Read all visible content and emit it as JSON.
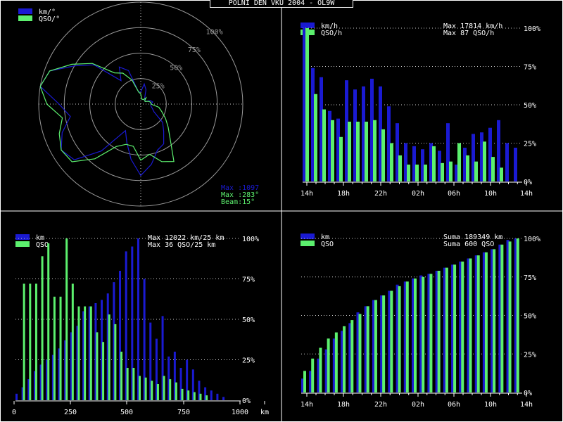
{
  "title": "POLNI DEN VKU 2004 - OL9W",
  "colors": {
    "blue": "#1a1ad2",
    "green": "#5cf06e",
    "grid": "#9a9a9a",
    "frame": "#ffffff",
    "bg": "#000000"
  },
  "chart_data": [
    {
      "id": "polar",
      "type": "polar",
      "legend": [
        {
          "label": "km/°",
          "color": "#1a1ad2"
        },
        {
          "label": "QSO/°",
          "color": "#5cf06e"
        }
      ],
      "ring_labels": [
        "25%",
        "50%",
        "75%",
        "100%"
      ],
      "stats": [
        "Max :1097",
        "Max :283°",
        "Beam:15°"
      ],
      "angles_deg": [
        0,
        10,
        20,
        30,
        40,
        50,
        60,
        70,
        80,
        90,
        100,
        110,
        120,
        130,
        140,
        150,
        160,
        170,
        180,
        190,
        200,
        210,
        220,
        230,
        240,
        250,
        260,
        270,
        280,
        290,
        300,
        310,
        320,
        330,
        340,
        350
      ],
      "km_percent": [
        12,
        20,
        15,
        8,
        6,
        5,
        5,
        10,
        12,
        10,
        10,
        12,
        15,
        28,
        35,
        45,
        48,
        60,
        70,
        55,
        40,
        30,
        60,
        85,
        90,
        82,
        70,
        80,
        100,
        95,
        75,
        60,
        30,
        42,
        35,
        12
      ],
      "qso_percent": [
        10,
        5,
        5,
        5,
        8,
        5,
        5,
        8,
        10,
        10,
        18,
        22,
        28,
        35,
        45,
        65,
        60,
        50,
        55,
        42,
        42,
        48,
        70,
        88,
        90,
        85,
        78,
        92,
        100,
        95,
        78,
        62,
        40,
        35,
        25,
        12
      ]
    },
    {
      "id": "hourly",
      "type": "bar",
      "legend": [
        {
          "label": "km/h",
          "color": "#1a1ad2"
        },
        {
          "label": "QSO/h",
          "color": "#5cf06e"
        }
      ],
      "stats": [
        "Max 17814 km/h",
        "Max   87 QSO/h"
      ],
      "x_tick_labels": [
        "14h",
        "18h",
        "22h",
        "02h",
        "06h",
        "10h",
        "14h"
      ],
      "y_tick_labels": [
        "0%",
        "25%",
        "50%",
        "75%",
        "100%"
      ],
      "ylim": [
        0,
        100
      ],
      "series": [
        {
          "name": "km/h",
          "values": [
            100,
            74,
            68,
            46,
            41,
            66,
            60,
            62,
            67,
            62,
            49,
            38,
            25,
            23,
            21,
            25,
            20,
            38,
            11,
            22,
            31,
            32,
            35,
            40,
            25,
            22
          ]
        },
        {
          "name": "QSO/h",
          "values": [
            100,
            57,
            47,
            40,
            29,
            39,
            39,
            39,
            40,
            34,
            25,
            17,
            11,
            11,
            11,
            23,
            12,
            13,
            25,
            17,
            13,
            26,
            16,
            9,
            0,
            0
          ]
        }
      ]
    },
    {
      "id": "distance",
      "type": "bar",
      "legend": [
        {
          "label": "km",
          "color": "#1a1ad2"
        },
        {
          "label": "QSO",
          "color": "#5cf06e"
        }
      ],
      "stats": [
        "Max 12022 km/25 km",
        "Max   36 QSO/25 km"
      ],
      "x_tick_labels": [
        "0",
        "250",
        "500",
        "750",
        "1000",
        "km"
      ],
      "y_tick_labels": [
        "0%",
        "25%",
        "50%",
        "75%",
        "100%"
      ],
      "ylim": [
        0,
        100
      ],
      "series": [
        {
          "name": "km",
          "values": [
            4,
            8,
            13,
            18,
            22,
            25,
            28,
            32,
            37,
            42,
            46,
            55,
            58,
            60,
            62,
            66,
            73,
            80,
            92,
            95,
            100,
            75,
            48,
            38,
            52,
            27,
            30,
            20,
            25,
            19,
            12,
            8,
            6,
            4,
            2,
            0,
            0
          ]
        },
        {
          "name": "QSO",
          "values": [
            0,
            72,
            72,
            72,
            89,
            97,
            64,
            64,
            100,
            72,
            58,
            58,
            58,
            42,
            36,
            53,
            47,
            30,
            20,
            20,
            15,
            14,
            12,
            10,
            15,
            13,
            11,
            7,
            6,
            5,
            4,
            3,
            0,
            0,
            0,
            0,
            0
          ]
        }
      ]
    },
    {
      "id": "cumulative",
      "type": "bar",
      "legend": [
        {
          "label": "km",
          "color": "#1a1ad2"
        },
        {
          "label": "QSO",
          "color": "#5cf06e"
        }
      ],
      "stats": [
        "Suma 189349 km",
        "Suma   600 QSO"
      ],
      "x_tick_labels": [
        "14h",
        "18h",
        "22h",
        "02h",
        "06h",
        "10h",
        "14h"
      ],
      "y_tick_labels": [
        "0%",
        "25%",
        "50%",
        "75%",
        "100%"
      ],
      "ylim": [
        0,
        100
      ],
      "series": [
        {
          "name": "km",
          "values": [
            9,
            14,
            22,
            28,
            35,
            40,
            45,
            52,
            56,
            60,
            63,
            66,
            70,
            72,
            74,
            76,
            77,
            79,
            81,
            83,
            85,
            87,
            89,
            91,
            93,
            96,
            99,
            100
          ]
        },
        {
          "name": "QSO",
          "values": [
            14,
            22,
            29,
            35,
            39,
            43,
            47,
            51,
            56,
            60,
            63,
            66,
            69,
            72,
            74,
            75,
            77,
            79,
            81,
            83,
            85,
            87,
            89,
            91,
            93,
            96,
            98,
            100
          ]
        }
      ]
    }
  ]
}
